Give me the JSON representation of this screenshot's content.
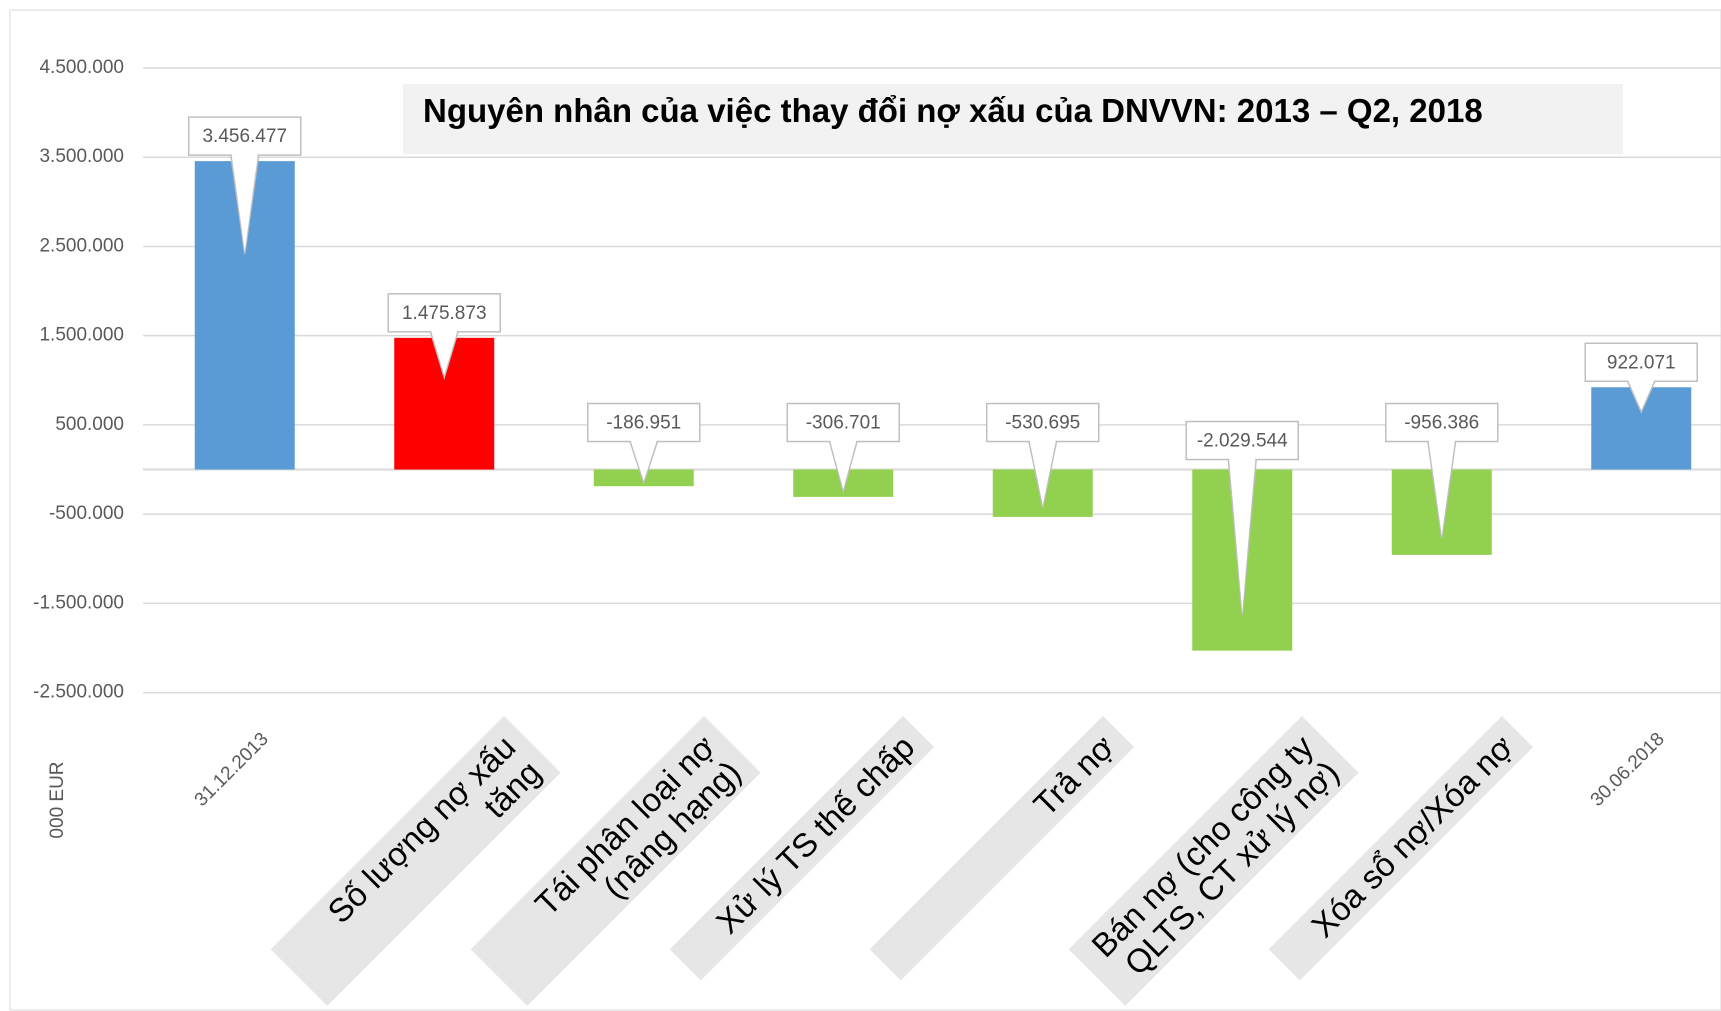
{
  "chart_data": {
    "type": "bar",
    "title": "Nguyên nhân của việc thay đổi nợ xấu của DNVVN: 2013 – Q2, 2018",
    "y_axis_label": "000 EUR",
    "categories": [
      "31.12.2013",
      "Số lượng nợ xấu tăng",
      "Tái phân loại nợ (nâng hạng)",
      "Xử lý TS thế chấp",
      "Trả nợ",
      "Bán nợ (cho công ty QLTS, CT xử lý nợ)",
      "Xóa sổ nợ/Xóa nợ",
      "30.06.2018"
    ],
    "values": [
      3456477,
      1475873,
      -186951,
      -306701,
      -530695,
      -2029544,
      -956386,
      922071
    ],
    "value_labels": [
      "3.456.477",
      "1.475.873",
      "-186.951",
      "-306.701",
      "-530.695",
      "-2.029.544",
      "-956.386",
      "922.071"
    ],
    "colors": [
      "#5b9bd5",
      "#ff0000",
      "#92d050",
      "#92d050",
      "#92d050",
      "#92d050",
      "#92d050",
      "#5b9bd5"
    ],
    "ylim": [
      -2500000,
      4500000
    ],
    "yticks": [
      {
        "value": 4500000,
        "label": "4.500.000"
      },
      {
        "value": 3500000,
        "label": "3.500.000"
      },
      {
        "value": 2500000,
        "label": "2.500.000"
      },
      {
        "value": 1500000,
        "label": "1.500.000"
      },
      {
        "value": 500000,
        "label": "500.000"
      },
      {
        "value": -500000,
        "label": "-500.000"
      },
      {
        "value": -1500000,
        "label": "-1.500.000"
      },
      {
        "value": -2500000,
        "label": "-2.500.000"
      }
    ],
    "grid": true
  }
}
